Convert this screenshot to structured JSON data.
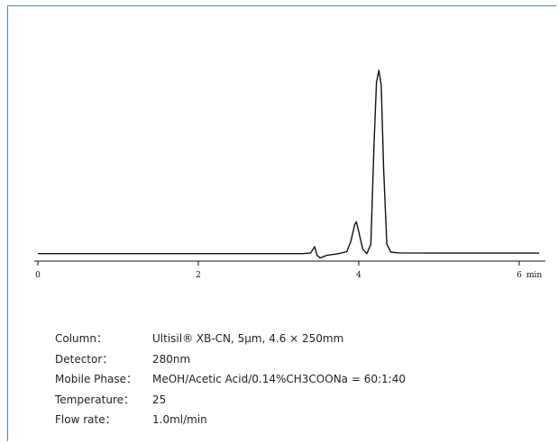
{
  "chart_data": {
    "type": "line",
    "title": "",
    "xlabel": "",
    "ylabel": "",
    "x_unit_label": "min",
    "x_ticks": [
      0,
      2,
      4,
      6
    ],
    "xlim": [
      0,
      6.3
    ],
    "ylim": [
      0,
      1
    ],
    "grid": false,
    "series": [
      {
        "x": [
          0.0,
          1.0,
          2.0,
          3.0,
          3.3,
          3.4,
          3.45,
          3.48,
          3.52,
          3.6,
          3.75,
          3.85,
          3.9,
          3.95,
          3.97,
          4.0,
          4.05,
          4.1,
          4.15,
          4.19,
          4.22,
          4.25,
          4.28,
          4.31,
          4.35,
          4.4,
          4.5,
          5.0,
          5.5,
          6.0,
          6.25
        ],
        "y": [
          0.262,
          0.262,
          0.262,
          0.262,
          0.262,
          0.265,
          0.29,
          0.255,
          0.245,
          0.255,
          0.262,
          0.27,
          0.31,
          0.38,
          0.39,
          0.35,
          0.28,
          0.262,
          0.3,
          0.7,
          0.95,
          1.0,
          0.94,
          0.6,
          0.3,
          0.268,
          0.265,
          0.264,
          0.264,
          0.264,
          0.264
        ]
      }
    ]
  },
  "conditions": {
    "rows": [
      {
        "label": "Column：",
        "value": "Ultisil® XB-CN, 5μm, 4.6 × 250mm"
      },
      {
        "label": "Detector：",
        "value": "280nm"
      },
      {
        "label": "Mobile Phase：",
        "value": "MeOH/Acetic Acid/0.14%CH3COONa = 60:1:40"
      },
      {
        "label": "Temperature：",
        "value": "25"
      },
      {
        "label": "Flow rate：",
        "value": "1.0ml/min"
      }
    ]
  }
}
